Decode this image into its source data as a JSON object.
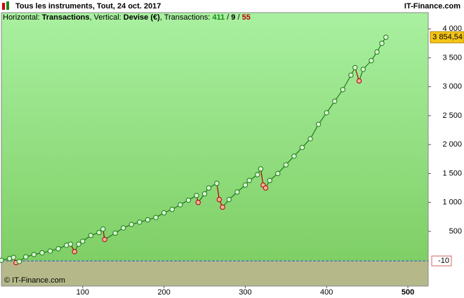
{
  "chart_data": {
    "type": "line",
    "title": "Tous les instruments, Tout, 24 oct. 2017",
    "brand": "IT-Finance.com",
    "subtitle": [
      {
        "text": "Horizontal: ",
        "bold": false,
        "color": "#000000"
      },
      {
        "text": "Transactions",
        "bold": true,
        "color": "#000000"
      },
      {
        "text": ", Vertical: ",
        "bold": false,
        "color": "#000000"
      },
      {
        "text": "Devise (€)",
        "bold": true,
        "color": "#000000"
      },
      {
        "text": ", Transactions: ",
        "bold": false,
        "color": "#000000"
      },
      {
        "text": "411",
        "bold": true,
        "color": "#1a8a1a"
      },
      {
        "text": " / ",
        "bold": false,
        "color": "#000000"
      },
      {
        "text": "9",
        "bold": true,
        "color": "#000000"
      },
      {
        "text": " / ",
        "bold": false,
        "color": "#000000"
      },
      {
        "text": "55",
        "bold": true,
        "color": "#c00000"
      }
    ],
    "footer": "© IT-Finance.com",
    "xlim": [
      0,
      525
    ],
    "ylim": [
      -445,
      4280
    ],
    "xticks": [
      100,
      200,
      300,
      400,
      500
    ],
    "yticks": [
      500,
      {
        "value": 1000,
        "label": "1 000"
      },
      {
        "value": 1500,
        "label": "1 500"
      },
      {
        "value": 2000,
        "label": "2 000"
      },
      {
        "value": 2500,
        "label": "2 500"
      },
      {
        "value": 3000,
        "label": "3 000"
      },
      {
        "value": 3500,
        "label": "3 500"
      },
      {
        "value": 4000,
        "label": "4 000"
      }
    ],
    "last_value": {
      "value": 3854.54,
      "label": "3 854,54"
    },
    "reference_line": {
      "value": -10,
      "label": "-10"
    },
    "series": [
      {
        "color": "#1f7a1f",
        "down_color": "#b00000",
        "x": [
          0,
          10,
          15,
          18,
          22,
          30,
          40,
          50,
          60,
          70,
          80,
          85,
          90,
          95,
          100,
          110,
          120,
          125,
          127,
          140,
          150,
          160,
          170,
          180,
          190,
          200,
          210,
          220,
          230,
          240,
          242,
          250,
          255,
          265,
          268,
          272,
          280,
          290,
          300,
          305,
          315,
          319,
          322,
          325,
          330,
          340,
          350,
          360,
          370,
          380,
          390,
          400,
          410,
          420,
          430,
          435,
          440,
          445,
          455,
          462,
          468,
          473
        ],
        "values": [
          0,
          30,
          50,
          -40,
          -20,
          60,
          100,
          130,
          160,
          200,
          260,
          280,
          150,
          280,
          330,
          430,
          480,
          540,
          360,
          470,
          560,
          620,
          660,
          700,
          740,
          820,
          880,
          960,
          1040,
          1120,
          1000,
          1150,
          1250,
          1330,
          1050,
          920,
          1050,
          1180,
          1300,
          1380,
          1480,
          1580,
          1300,
          1250,
          1380,
          1500,
          1650,
          1800,
          1950,
          2100,
          2350,
          2550,
          2750,
          2950,
          3200,
          3330,
          3100,
          3300,
          3450,
          3600,
          3750,
          3854.54
        ]
      }
    ]
  }
}
